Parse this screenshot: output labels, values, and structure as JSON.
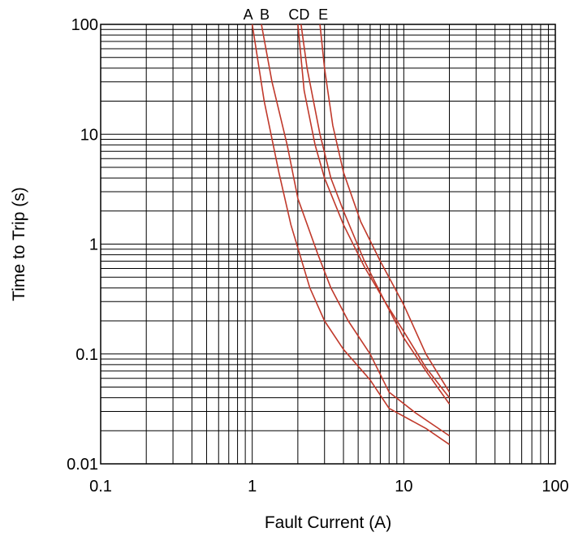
{
  "chart_data": {
    "type": "line",
    "title": "",
    "xlabel": "Fault Current (A)",
    "ylabel": "Time to Trip (s)",
    "xscale": "log",
    "yscale": "log",
    "xlim": [
      0.1,
      100
    ],
    "ylim": [
      0.01,
      100
    ],
    "x_ticks": [
      0.1,
      1,
      10,
      100
    ],
    "x_tick_labels": [
      "0.1",
      "1",
      "10",
      "100"
    ],
    "y_ticks": [
      0.01,
      0.1,
      1,
      10,
      100
    ],
    "y_tick_labels": [
      "0.01",
      "0.1",
      "1",
      "10",
      "100"
    ],
    "grid": true,
    "line_color": "#c0392b",
    "series": [
      {
        "name": "A",
        "points": [
          [
            1.0,
            100
          ],
          [
            1.2,
            20
          ],
          [
            1.5,
            4.5
          ],
          [
            1.8,
            1.5
          ],
          [
            2.4,
            0.4
          ],
          [
            3.0,
            0.2
          ],
          [
            4.0,
            0.11
          ],
          [
            6.0,
            0.058
          ],
          [
            8.0,
            0.032
          ],
          [
            14.0,
            0.021
          ],
          [
            20.0,
            0.015
          ]
        ]
      },
      {
        "name": "B",
        "points": [
          [
            1.15,
            100
          ],
          [
            1.35,
            30
          ],
          [
            1.7,
            8.0
          ],
          [
            2.0,
            2.6
          ],
          [
            2.7,
            0.82
          ],
          [
            3.3,
            0.4
          ],
          [
            4.3,
            0.2
          ],
          [
            6.0,
            0.1
          ],
          [
            8.0,
            0.045
          ],
          [
            12.0,
            0.029
          ],
          [
            20.0,
            0.018
          ]
        ]
      },
      {
        "name": "C",
        "points": [
          [
            2.0,
            100
          ],
          [
            2.2,
            25
          ],
          [
            2.6,
            8.0
          ],
          [
            3.0,
            4.0
          ],
          [
            4.0,
            1.5
          ],
          [
            5.5,
            0.62
          ],
          [
            7.5,
            0.3
          ],
          [
            10.0,
            0.14
          ],
          [
            14.0,
            0.07
          ],
          [
            20.0,
            0.035
          ]
        ]
      },
      {
        "name": "D",
        "points": [
          [
            2.1,
            100
          ],
          [
            2.3,
            40
          ],
          [
            2.8,
            10.0
          ],
          [
            3.3,
            4.0
          ],
          [
            4.0,
            2.0
          ],
          [
            5.5,
            0.7
          ],
          [
            7.5,
            0.3
          ],
          [
            10.0,
            0.16
          ],
          [
            14.0,
            0.075
          ],
          [
            20.0,
            0.04
          ]
        ]
      },
      {
        "name": "E",
        "points": [
          [
            2.8,
            100
          ],
          [
            3.0,
            40
          ],
          [
            3.4,
            12.0
          ],
          [
            4.0,
            4.5
          ],
          [
            5.2,
            1.6
          ],
          [
            7.0,
            0.7
          ],
          [
            10.0,
            0.28
          ],
          [
            14.0,
            0.1
          ],
          [
            20.0,
            0.045
          ]
        ]
      }
    ]
  }
}
